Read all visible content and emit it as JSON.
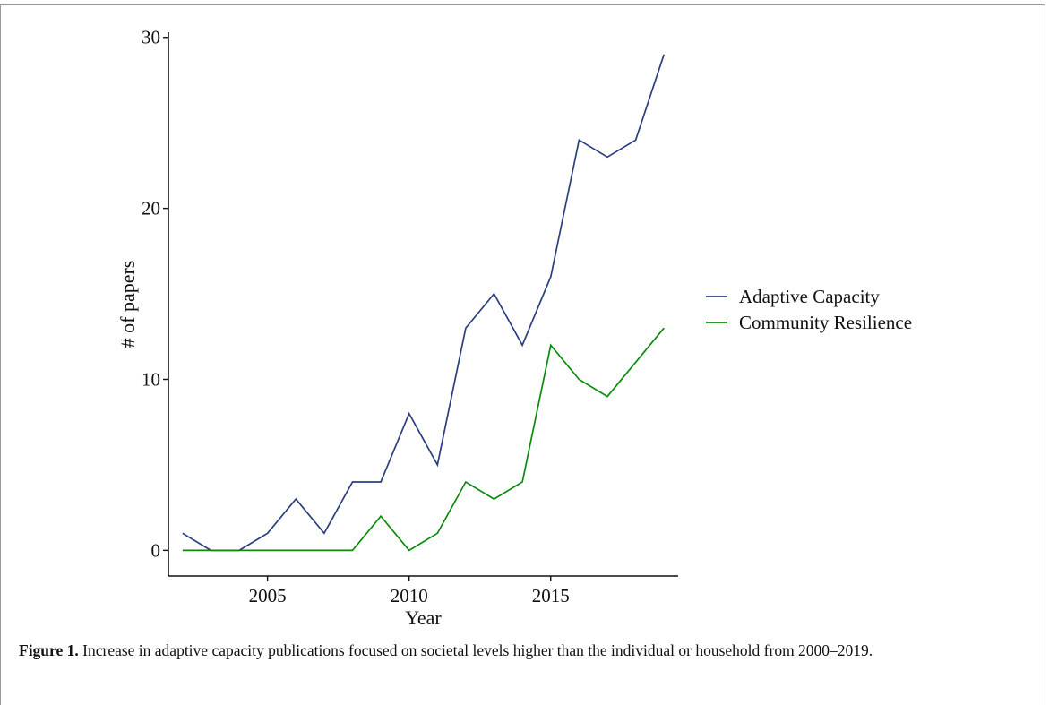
{
  "figure": {
    "label": "Figure 1.",
    "caption": "Increase in adaptive capacity publications focused on societal levels higher than the individual or household from 2000–2019."
  },
  "chart_data": {
    "type": "line",
    "xlabel": "Year",
    "ylabel": "# of papers",
    "xlim": [
      2001.5,
      2019.5
    ],
    "ylim": [
      -1.5,
      30.3
    ],
    "x_ticks": [
      2005,
      2010,
      2015
    ],
    "x_tick_labels": [
      "2005",
      "2010",
      "2015"
    ],
    "y_ticks": [
      0,
      10,
      20,
      30
    ],
    "y_tick_labels": [
      "0",
      "10",
      "20",
      "30"
    ],
    "grid": false,
    "legend_position": "right",
    "x": [
      2002,
      2003,
      2004,
      2005,
      2006,
      2007,
      2008,
      2009,
      2010,
      2011,
      2012,
      2013,
      2014,
      2015,
      2016,
      2017,
      2018,
      2019
    ],
    "series": [
      {
        "name": "Adaptive Capacity",
        "color": "#2c3e7e",
        "values": [
          1,
          0,
          0,
          1,
          3,
          1,
          4,
          4,
          8,
          5,
          13,
          15,
          12,
          16,
          24,
          23,
          24,
          29
        ]
      },
      {
        "name": "Community Resilience",
        "color": "#0d8a0d",
        "values": [
          0,
          0,
          0,
          0,
          0,
          0,
          0,
          2,
          0,
          1,
          4,
          3,
          4,
          12,
          10,
          9,
          11,
          13
        ]
      }
    ]
  }
}
